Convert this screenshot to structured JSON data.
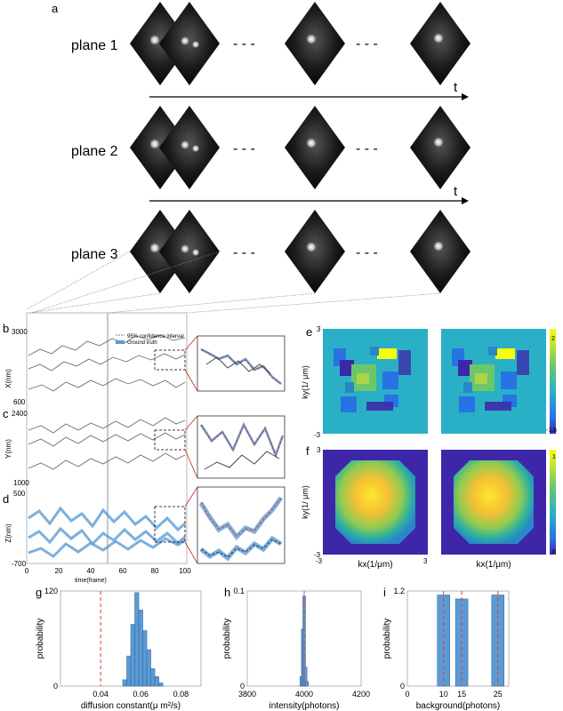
{
  "panel_labels": {
    "a": "a",
    "b": "b",
    "c": "c",
    "d": "d",
    "e": "e",
    "f": "f",
    "g": "g",
    "h": "h",
    "i": "i"
  },
  "planes": [
    "plane 1",
    "plane 2",
    "plane 3"
  ],
  "time_axis_label": "t",
  "ellipsis": "- - -",
  "panel_b": {
    "ylabel": "X(nm)",
    "ytop": "3000",
    "ybottom": "600"
  },
  "panel_c": {
    "ylabel": "Y(nm)",
    "ytop": "2400",
    "ybottom": "1000"
  },
  "panel_d": {
    "ylabel": "Z(nm)",
    "ytop": "500",
    "ybottom": "-700"
  },
  "time_ticks": [
    "0",
    "20",
    "40",
    "60",
    "80",
    "100"
  ],
  "time_label": "time(frame)",
  "legend": {
    "ci": "95% confidence interval",
    "gt": "Ground truth"
  },
  "heatmap_e": {
    "ylabel": "ky(1/ μm)",
    "ytop": "3",
    "ybottom": "-3",
    "cb_top": "2",
    "cb_bottom": "-1.5"
  },
  "heatmap_f": {
    "ylabel": "ky(1/ μm)",
    "ytop": "3",
    "ybottom": "-3",
    "xleft": "-3",
    "xright": "3",
    "xlabel": "kx(1/μm)",
    "cb_top": "1",
    "cb_bottom": "0"
  },
  "colors": {
    "parula_low": "#3e26a8",
    "parula_mid": "#2ab0c6",
    "parula_high": "#f9fb0e",
    "series": "#5b9bd5",
    "truth": "#e03c28"
  },
  "chart_data": [
    {
      "panel": "g",
      "type": "bar",
      "xlabel": "diffusion constant(μ m²/s)",
      "ylabel": "probability",
      "xlim": [
        0.02,
        0.09
      ],
      "ylim": [
        0,
        120
      ],
      "xticks": [
        "0.04",
        "0.06",
        "0.08"
      ],
      "yticks": [
        "0",
        "120"
      ],
      "x": [
        0.052,
        0.054,
        0.056,
        0.058,
        0.06,
        0.062,
        0.064,
        0.066,
        0.068,
        0.07
      ],
      "values": [
        8,
        38,
        78,
        118,
        96,
        70,
        46,
        22,
        12,
        4
      ],
      "truth_line": 0.04
    },
    {
      "panel": "h",
      "type": "bar",
      "xlabel": "intensity(photons)",
      "ylabel": "probability",
      "xlim": [
        3800,
        4200
      ],
      "ylim": [
        0,
        0.1
      ],
      "xticks": [
        "3800",
        "4000",
        "4200"
      ],
      "yticks": [
        "0",
        "0.1"
      ],
      "x": [
        3990,
        3995,
        4000,
        4005,
        4010
      ],
      "values": [
        0.01,
        0.06,
        0.095,
        0.02,
        0.005
      ],
      "truth_line": 4000
    },
    {
      "panel": "i",
      "type": "bar",
      "xlabel": "background(photons)",
      "ylabel": "probability",
      "xlim": [
        0,
        28
      ],
      "ylim": [
        0,
        1.2
      ],
      "xticks": [
        "0",
        "10",
        "15",
        "25"
      ],
      "yticks": [
        "0",
        "1.2"
      ],
      "x": [
        10,
        15,
        25
      ],
      "values": [
        1.15,
        1.1,
        1.15
      ],
      "truth_line": [
        10,
        15,
        25
      ]
    }
  ]
}
